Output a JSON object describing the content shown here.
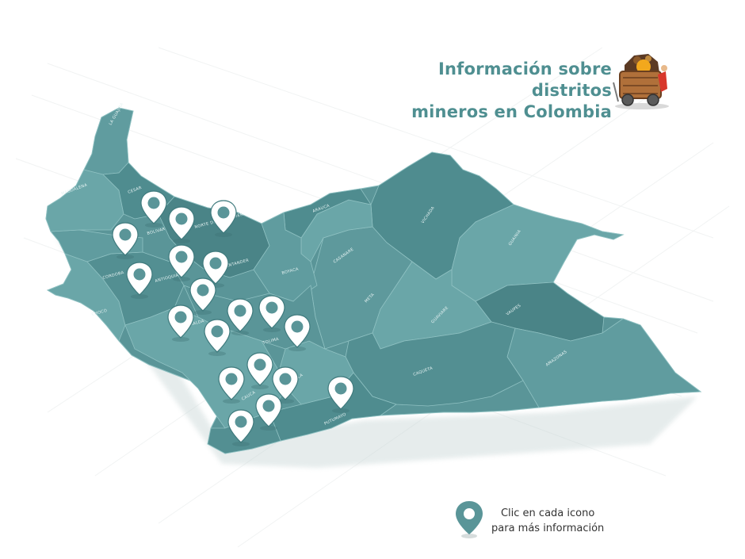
{
  "header": {
    "title_line1": "Información sobre distritos",
    "title_line2": "mineros en Colombia",
    "mascot_icon": "mining-cart-icon"
  },
  "legend": {
    "line1": "Clic en cada icono",
    "line2": "para más información",
    "icon": "location-pin-icon"
  },
  "colors": {
    "map": "#5a9598",
    "map_dark": "#4a8487",
    "map_light": "#6aa6a8",
    "borders": "#8fc1c2",
    "title": "#4f8f91",
    "pin": "#ffffff"
  },
  "departments": [
    {
      "name": "LA GUAJIRA"
    },
    {
      "name": "MAGDALENA"
    },
    {
      "name": "CESAR"
    },
    {
      "name": "BOLIVAR"
    },
    {
      "name": "NORTE DE SANTANDER"
    },
    {
      "name": "SANTANDER"
    },
    {
      "name": "CORDOBA"
    },
    {
      "name": "ANTIOQUIA"
    },
    {
      "name": "CHOCO"
    },
    {
      "name": "BOYACA"
    },
    {
      "name": "ARAUCA"
    },
    {
      "name": "CASANARE"
    },
    {
      "name": "VICHADA"
    },
    {
      "name": "GUAINIA"
    },
    {
      "name": "META"
    },
    {
      "name": "GUAVIARE"
    },
    {
      "name": "VAUPES"
    },
    {
      "name": "RISARALDA"
    },
    {
      "name": "TOLIMA"
    },
    {
      "name": "HUILA"
    },
    {
      "name": "CAQUETA"
    },
    {
      "name": "AMAZONAS"
    },
    {
      "name": "CAUCA"
    },
    {
      "name": "PUTUMAYO"
    }
  ],
  "mining_districts": [
    {
      "id": 1
    },
    {
      "id": 2
    },
    {
      "id": 3
    },
    {
      "id": 4
    },
    {
      "id": 5
    },
    {
      "id": 6
    },
    {
      "id": 7
    },
    {
      "id": 8
    },
    {
      "id": 9
    },
    {
      "id": 10
    },
    {
      "id": 11
    },
    {
      "id": 12
    },
    {
      "id": 13
    },
    {
      "id": 14
    },
    {
      "id": 15
    },
    {
      "id": 16
    },
    {
      "id": 17
    },
    {
      "id": 18
    },
    {
      "id": 19
    },
    {
      "id": 20
    }
  ]
}
